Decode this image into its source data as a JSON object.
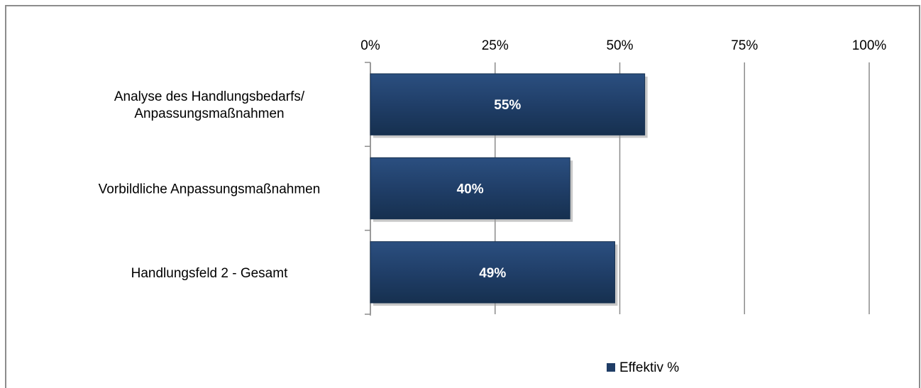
{
  "chart_data": {
    "type": "bar",
    "orientation": "horizontal",
    "categories": [
      [
        "Analyse des Handlungsbedarfs/",
        "Anpassungsmaßnahmen"
      ],
      [
        "Vorbildliche Anpassungsmaßnahmen"
      ],
      [
        "Handlungsfeld 2 - Gesamt"
      ]
    ],
    "series": [
      {
        "name": "Effektiv %",
        "values": [
          55,
          40,
          49
        ],
        "color": "#1f3d66"
      }
    ],
    "data_labels": [
      "55%",
      "40%",
      "49%"
    ],
    "x_ticks": [
      "0%",
      "25%",
      "50%",
      "75%",
      "100%"
    ],
    "xlim": [
      0,
      100
    ],
    "x_axis_position": "top",
    "grid": true,
    "legend": {
      "position": "bottom-center",
      "label": "Effektiv %"
    },
    "title": "",
    "xlabel": "",
    "ylabel": ""
  }
}
